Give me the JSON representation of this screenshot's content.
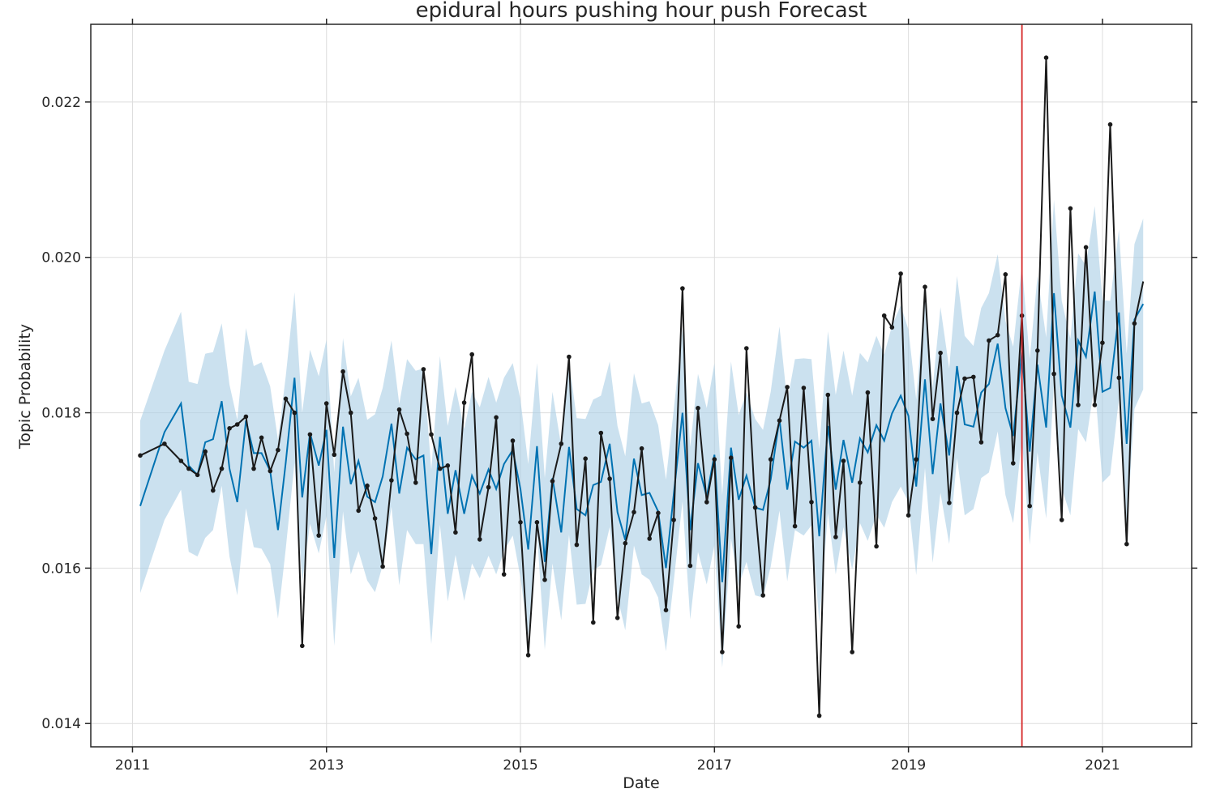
{
  "chart_data": {
    "type": "line",
    "title": "epidural hours pushing hour push Forecast",
    "xlabel": "Date",
    "ylabel": "Topic Probability",
    "xlim": [
      2010.57,
      2021.92
    ],
    "ylim": [
      0.0137,
      0.023
    ],
    "x_ticks": [
      2011,
      2013,
      2015,
      2017,
      2019,
      2021
    ],
    "y_ticks": [
      0.014,
      0.016,
      0.018,
      0.02,
      0.022
    ],
    "x_tick_labels": [
      "2011",
      "2013",
      "2015",
      "2017",
      "2019",
      "2021"
    ],
    "y_tick_labels": [
      "0.014",
      "0.016",
      "0.018",
      "0.020",
      "0.022"
    ],
    "grid": true,
    "changepoint_x": 2020.17,
    "colors": {
      "actual": "#1a1a1a",
      "forecast": "#0072B2",
      "interval": "#a8cde4",
      "changepoint": "#d62728",
      "grid": "#dddddd",
      "axes": "#262626"
    },
    "series": [
      {
        "role": "actual",
        "x": [
          2011.08,
          2011.33,
          2011.5,
          2011.58,
          2011.67,
          2011.75,
          2011.83,
          2011.92,
          2012.0,
          2012.08,
          2012.17,
          2012.25,
          2012.33,
          2012.42,
          2012.5,
          2012.58,
          2012.67,
          2012.75,
          2012.83,
          2012.92,
          2013.0,
          2013.08,
          2013.17,
          2013.25,
          2013.33,
          2013.42,
          2013.5,
          2013.58,
          2013.67,
          2013.75,
          2013.83,
          2013.92,
          2014.0,
          2014.08,
          2014.17,
          2014.25,
          2014.33,
          2014.42,
          2014.5,
          2014.58,
          2014.67,
          2014.75,
          2014.83,
          2014.92,
          2015.0,
          2015.08,
          2015.17,
          2015.25,
          2015.33,
          2015.42,
          2015.5,
          2015.58,
          2015.67,
          2015.75,
          2015.83,
          2015.92,
          2016.0,
          2016.08,
          2016.17,
          2016.25,
          2016.33,
          2016.42,
          2016.5,
          2016.58,
          2016.67,
          2016.75,
          2016.83,
          2016.92,
          2017.0,
          2017.08,
          2017.17,
          2017.25,
          2017.33,
          2017.42,
          2017.5,
          2017.58,
          2017.67,
          2017.75,
          2017.83,
          2017.92,
          2018.0,
          2018.08,
          2018.17,
          2018.25,
          2018.33,
          2018.42,
          2018.5,
          2018.58,
          2018.67,
          2018.75,
          2018.83,
          2018.92,
          2019.0,
          2019.08,
          2019.17,
          2019.25,
          2019.33,
          2019.42,
          2019.5,
          2019.58,
          2019.67,
          2019.75,
          2019.83,
          2019.92,
          2020.0,
          2020.08,
          2020.17,
          2020.25,
          2020.33,
          2020.42,
          2020.5,
          2020.58,
          2020.67,
          2020.75,
          2020.83,
          2020.92,
          2021.0,
          2021.08,
          2021.17,
          2021.25,
          2021.33,
          2021.42
        ],
        "y": [
          0.01745,
          0.0176,
          0.01738,
          0.01728,
          0.0172,
          0.0175,
          0.017,
          0.01728,
          0.0178,
          0.01785,
          0.01795,
          0.01728,
          0.01768,
          0.01725,
          0.01752,
          0.01818,
          0.018,
          0.015,
          0.01772,
          0.01642,
          0.01812,
          0.01746,
          0.01853,
          0.018,
          0.01674,
          0.01706,
          0.01664,
          0.01602,
          0.01713,
          0.01804,
          0.01773,
          0.0171,
          0.01856,
          0.01772,
          0.01728,
          0.01732,
          0.01646,
          0.01813,
          0.01875,
          0.01637,
          0.01704,
          0.01794,
          0.01592,
          0.01764,
          0.01659,
          0.01488,
          0.01659,
          0.01585,
          0.01712,
          0.0176,
          0.01872,
          0.0163,
          0.01741,
          0.0153,
          0.01774,
          0.01715,
          0.01536,
          0.01632,
          0.01672,
          0.01754,
          0.01638,
          0.01671,
          0.01546,
          0.01662,
          0.0196,
          0.01603,
          0.01806,
          0.01685,
          0.0174,
          0.01492,
          0.01742,
          0.01525,
          0.01883,
          0.01678,
          0.01565,
          0.0174,
          0.0179,
          0.01833,
          0.01654,
          0.01832,
          0.01685,
          0.0141,
          0.01823,
          0.0164,
          0.01738,
          0.01492,
          0.0171,
          0.01826,
          0.01628,
          0.01925,
          0.0191,
          0.01979,
          0.01668,
          0.0174,
          0.01962,
          0.01792,
          0.01877,
          0.01684,
          0.018,
          0.01844,
          0.01846,
          0.01762,
          0.01893,
          0.019,
          0.01978,
          0.01735,
          0.01925,
          0.0168,
          0.0188,
          0.02257,
          0.0185,
          0.01662,
          0.02063,
          0.0181,
          0.02013,
          0.0181,
          0.0189,
          0.02171,
          0.01845,
          0.01631,
          0.01915,
          0.01969
        ]
      },
      {
        "role": "forecast",
        "x": [
          2011.08,
          2011.33,
          2011.5,
          2011.58,
          2011.67,
          2011.75,
          2011.83,
          2011.92,
          2012.0,
          2012.08,
          2012.17,
          2012.25,
          2012.33,
          2012.42,
          2012.5,
          2012.58,
          2012.67,
          2012.75,
          2012.83,
          2012.92,
          2013.0,
          2013.08,
          2013.17,
          2013.25,
          2013.33,
          2013.42,
          2013.5,
          2013.58,
          2013.67,
          2013.75,
          2013.83,
          2013.92,
          2014.0,
          2014.08,
          2014.17,
          2014.25,
          2014.33,
          2014.42,
          2014.5,
          2014.58,
          2014.67,
          2014.75,
          2014.83,
          2014.92,
          2015.0,
          2015.08,
          2015.17,
          2015.25,
          2015.33,
          2015.42,
          2015.5,
          2015.58,
          2015.67,
          2015.75,
          2015.83,
          2015.92,
          2016.0,
          2016.08,
          2016.17,
          2016.25,
          2016.33,
          2016.42,
          2016.5,
          2016.58,
          2016.67,
          2016.75,
          2016.83,
          2016.92,
          2017.0,
          2017.08,
          2017.17,
          2017.25,
          2017.33,
          2017.42,
          2017.5,
          2017.58,
          2017.67,
          2017.75,
          2017.83,
          2017.92,
          2018.0,
          2018.08,
          2018.17,
          2018.25,
          2018.33,
          2018.42,
          2018.5,
          2018.58,
          2018.67,
          2018.75,
          2018.83,
          2018.92,
          2019.0,
          2019.08,
          2019.17,
          2019.25,
          2019.33,
          2019.42,
          2019.5,
          2019.58,
          2019.67,
          2019.75,
          2019.83,
          2019.92,
          2020.0,
          2020.08,
          2020.17,
          2020.25,
          2020.33,
          2020.42,
          2020.5,
          2020.58,
          2020.67,
          2020.75,
          2020.83,
          2020.92,
          2021.0,
          2021.08,
          2021.17,
          2021.25,
          2021.33,
          2021.42
        ],
        "y": [
          0.0168,
          0.01775,
          0.01812,
          0.01732,
          0.0172,
          0.01762,
          0.01766,
          0.01815,
          0.01728,
          0.01685,
          0.0179,
          0.01748,
          0.01748,
          0.01725,
          0.01649,
          0.01736,
          0.01845,
          0.01691,
          0.01774,
          0.01732,
          0.01778,
          0.01613,
          0.01782,
          0.01708,
          0.01738,
          0.01692,
          0.01685,
          0.01718,
          0.01786,
          0.01696,
          0.01755,
          0.0174,
          0.01745,
          0.01618,
          0.01769,
          0.0167,
          0.01726,
          0.0167,
          0.01719,
          0.01696,
          0.01727,
          0.01702,
          0.01734,
          0.01752,
          0.01702,
          0.01624,
          0.01757,
          0.01608,
          0.01716,
          0.01646,
          0.01756,
          0.01676,
          0.01668,
          0.01707,
          0.01711,
          0.0176,
          0.01672,
          0.01636,
          0.01741,
          0.01694,
          0.01697,
          0.01673,
          0.016,
          0.01695,
          0.018,
          0.01649,
          0.01735,
          0.01692,
          0.01746,
          0.01582,
          0.01755,
          0.01688,
          0.01719,
          0.01678,
          0.01675,
          0.01714,
          0.01792,
          0.01701,
          0.01763,
          0.01755,
          0.01764,
          0.01641,
          0.01783,
          0.01701,
          0.01765,
          0.0171,
          0.01767,
          0.01749,
          0.01784,
          0.01764,
          0.01799,
          0.01822,
          0.01796,
          0.01705,
          0.01843,
          0.01721,
          0.01812,
          0.01745,
          0.0186,
          0.01785,
          0.01782,
          0.01826,
          0.01837,
          0.01889,
          0.01806,
          0.0177,
          0.01878,
          0.0175,
          0.01862,
          0.01781,
          0.01954,
          0.01822,
          0.01781,
          0.01893,
          0.01872,
          0.01956,
          0.01827,
          0.01832,
          0.01929,
          0.0176,
          0.0192,
          0.0194
        ]
      }
    ],
    "interval": {
      "x": [
        2011.08,
        2011.33,
        2011.5,
        2011.58,
        2011.67,
        2011.75,
        2011.83,
        2011.92,
        2012.0,
        2012.08,
        2012.17,
        2012.25,
        2012.33,
        2012.42,
        2012.5,
        2012.58,
        2012.67,
        2012.75,
        2012.83,
        2012.92,
        2013.0,
        2013.08,
        2013.17,
        2013.25,
        2013.33,
        2013.42,
        2013.5,
        2013.58,
        2013.67,
        2013.75,
        2013.83,
        2013.92,
        2014.0,
        2014.08,
        2014.17,
        2014.25,
        2014.33,
        2014.42,
        2014.5,
        2014.58,
        2014.67,
        2014.75,
        2014.83,
        2014.92,
        2015.0,
        2015.08,
        2015.17,
        2015.25,
        2015.33,
        2015.42,
        2015.5,
        2015.58,
        2015.67,
        2015.75,
        2015.83,
        2015.92,
        2016.0,
        2016.08,
        2016.17,
        2016.25,
        2016.33,
        2016.42,
        2016.5,
        2016.58,
        2016.67,
        2016.75,
        2016.83,
        2016.92,
        2017.0,
        2017.08,
        2017.17,
        2017.25,
        2017.33,
        2017.42,
        2017.5,
        2017.58,
        2017.67,
        2017.75,
        2017.83,
        2017.92,
        2018.0,
        2018.08,
        2018.17,
        2018.25,
        2018.33,
        2018.42,
        2018.5,
        2018.58,
        2018.67,
        2018.75,
        2018.83,
        2018.92,
        2019.0,
        2019.08,
        2019.17,
        2019.25,
        2019.33,
        2019.42,
        2019.5,
        2019.58,
        2019.67,
        2019.75,
        2019.83,
        2019.92,
        2020.0,
        2020.08,
        2020.17,
        2020.25,
        2020.33,
        2020.42,
        2020.5,
        2020.58,
        2020.67,
        2020.75,
        2020.83,
        2020.92,
        2021.0,
        2021.08,
        2021.17,
        2021.25,
        2021.33,
        2021.42
      ],
      "upper": [
        0.0179,
        0.0188,
        0.0193,
        0.0184,
        0.01837,
        0.01876,
        0.01878,
        0.01915,
        0.01836,
        0.01791,
        0.01909,
        0.0186,
        0.01865,
        0.01834,
        0.01765,
        0.01847,
        0.01955,
        0.018,
        0.01881,
        0.01847,
        0.01894,
        0.01723,
        0.01896,
        0.01821,
        0.01845,
        0.01791,
        0.01798,
        0.01832,
        0.01893,
        0.01811,
        0.01869,
        0.01854,
        0.01857,
        0.01727,
        0.01873,
        0.01783,
        0.01833,
        0.01779,
        0.01827,
        0.01807,
        0.01846,
        0.01813,
        0.01845,
        0.01864,
        0.01817,
        0.01734,
        0.01864,
        0.01716,
        0.01827,
        0.01757,
        0.01866,
        0.01793,
        0.01792,
        0.01817,
        0.01822,
        0.01866,
        0.01783,
        0.01744,
        0.01851,
        0.01812,
        0.01815,
        0.01784,
        0.01714,
        0.01804,
        0.01908,
        0.01756,
        0.0185,
        0.01806,
        0.01864,
        0.01694,
        0.01866,
        0.01797,
        0.01826,
        0.01792,
        0.01778,
        0.01827,
        0.01911,
        0.01814,
        0.01869,
        0.0187,
        0.01869,
        0.01753,
        0.01905,
        0.01823,
        0.0188,
        0.01822,
        0.01877,
        0.01865,
        0.01899,
        0.01875,
        0.01912,
        0.01938,
        0.01907,
        0.01817,
        0.01955,
        0.01832,
        0.01936,
        0.01857,
        0.01976,
        0.01899,
        0.01886,
        0.01935,
        0.01954,
        0.02004,
        0.01918,
        0.01885,
        0.0199,
        0.01869,
        0.01976,
        0.01897,
        0.02074,
        0.01944,
        0.01895,
        0.02005,
        0.01989,
        0.02066,
        0.01945,
        0.01944,
        0.02036,
        0.01876,
        0.02017,
        0.0205
      ],
      "lower": [
        0.01568,
        0.01662,
        0.01701,
        0.01621,
        0.01615,
        0.01639,
        0.01649,
        0.01706,
        0.01615,
        0.01565,
        0.01677,
        0.01627,
        0.01625,
        0.01605,
        0.01535,
        0.01625,
        0.01736,
        0.01582,
        0.01657,
        0.01619,
        0.01667,
        0.015,
        0.01673,
        0.01592,
        0.01622,
        0.01584,
        0.01569,
        0.01604,
        0.01679,
        0.01578,
        0.01649,
        0.01631,
        0.01631,
        0.01502,
        0.01656,
        0.01557,
        0.01617,
        0.01558,
        0.01606,
        0.01587,
        0.01616,
        0.01592,
        0.01622,
        0.01642,
        0.01588,
        0.01513,
        0.01646,
        0.01495,
        0.01606,
        0.01533,
        0.01643,
        0.01553,
        0.01554,
        0.01597,
        0.01604,
        0.01653,
        0.01563,
        0.0152,
        0.01629,
        0.01592,
        0.01585,
        0.01562,
        0.01493,
        0.01583,
        0.01686,
        0.01534,
        0.01621,
        0.01579,
        0.0163,
        0.01472,
        0.01638,
        0.01577,
        0.01608,
        0.01565,
        0.01562,
        0.01602,
        0.01674,
        0.01583,
        0.01649,
        0.01642,
        0.01655,
        0.0153,
        0.01671,
        0.01592,
        0.01653,
        0.01598,
        0.01658,
        0.01635,
        0.01669,
        0.01652,
        0.01685,
        0.01705,
        0.01685,
        0.01591,
        0.01729,
        0.01607,
        0.01697,
        0.01631,
        0.01742,
        0.01668,
        0.01676,
        0.01716,
        0.01723,
        0.01776,
        0.01694,
        0.01658,
        0.01767,
        0.0163,
        0.01749,
        0.01664,
        0.01837,
        0.01703,
        0.01668,
        0.01779,
        0.01762,
        0.01838,
        0.0171,
        0.0172,
        0.01818,
        0.01646,
        0.01805,
        0.0183
      ]
    }
  }
}
